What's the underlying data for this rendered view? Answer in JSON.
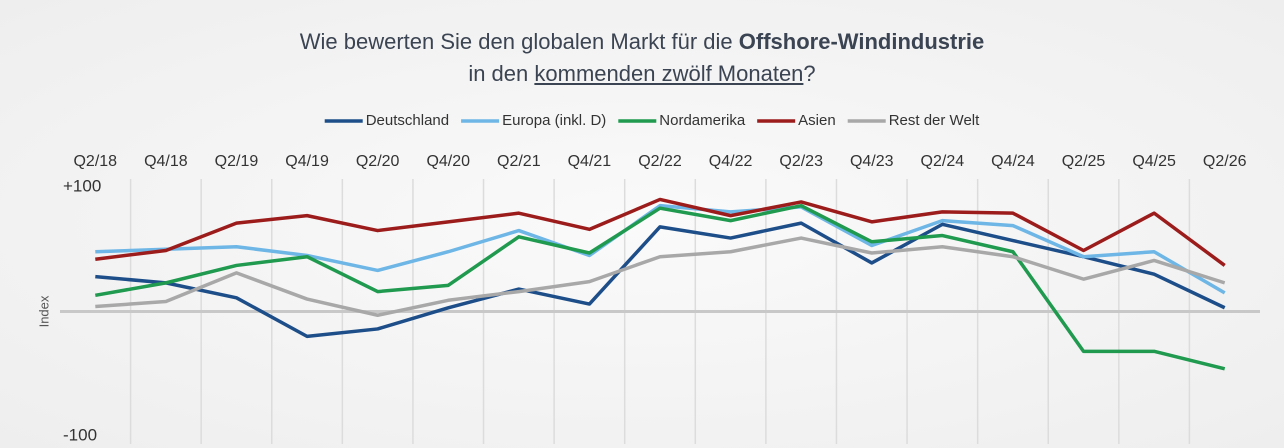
{
  "chart_data": {
    "type": "line",
    "title_parts": [
      "Wie bewerten Sie den globalen Markt für die",
      "Offshore-Windindustrie",
      "in den",
      "kommenden zwölf Monaten",
      "?"
    ],
    "y_label": "Index",
    "categories": [
      "Q2/18",
      "Q4/18",
      "Q2/19",
      "Q4/19",
      "Q2/20",
      "Q4/20",
      "Q2/21",
      "Q4/21",
      "Q2/22",
      "Q4/22",
      "Q2/23",
      "Q4/23",
      "Q2/24",
      "Q4/24",
      "Q2/25",
      "Q4/25",
      "Q2/26"
    ],
    "series": [
      {
        "name": "Deutschland",
        "color": "#1d4e89",
        "values": [
          28,
          23,
          11,
          -20,
          -14,
          3,
          18,
          6,
          68,
          59,
          71,
          39,
          70,
          57,
          44,
          30,
          3
        ]
      },
      {
        "name": "Europa (inkl. D)",
        "color": "#6db6e6",
        "values": [
          48,
          50,
          52,
          45,
          33,
          48,
          65,
          45,
          85,
          80,
          84,
          53,
          73,
          69,
          44,
          48,
          15
        ]
      },
      {
        "name": "Nordamerika",
        "color": "#1f9a4f",
        "values": [
          13,
          23,
          37,
          44,
          16,
          21,
          60,
          47,
          83,
          73,
          85,
          56,
          61,
          48,
          -32,
          -32,
          -46
        ]
      },
      {
        "name": "Asien",
        "color": "#9c1c1c",
        "values": [
          42,
          49,
          71,
          77,
          65,
          72,
          79,
          66,
          90,
          77,
          88,
          72,
          80,
          79,
          49,
          79,
          37
        ]
      },
      {
        "name": "Rest der Welt",
        "color": "#a8a8a8",
        "values": [
          4,
          8,
          31,
          10,
          -3,
          9,
          16,
          24,
          44,
          48,
          59,
          47,
          52,
          44,
          26,
          41,
          23
        ]
      }
    ],
    "ylim": [
      -100,
      100
    ],
    "yticks": [
      {
        "value": 100,
        "label": "+100"
      },
      -100
    ],
    "legend": "top"
  }
}
